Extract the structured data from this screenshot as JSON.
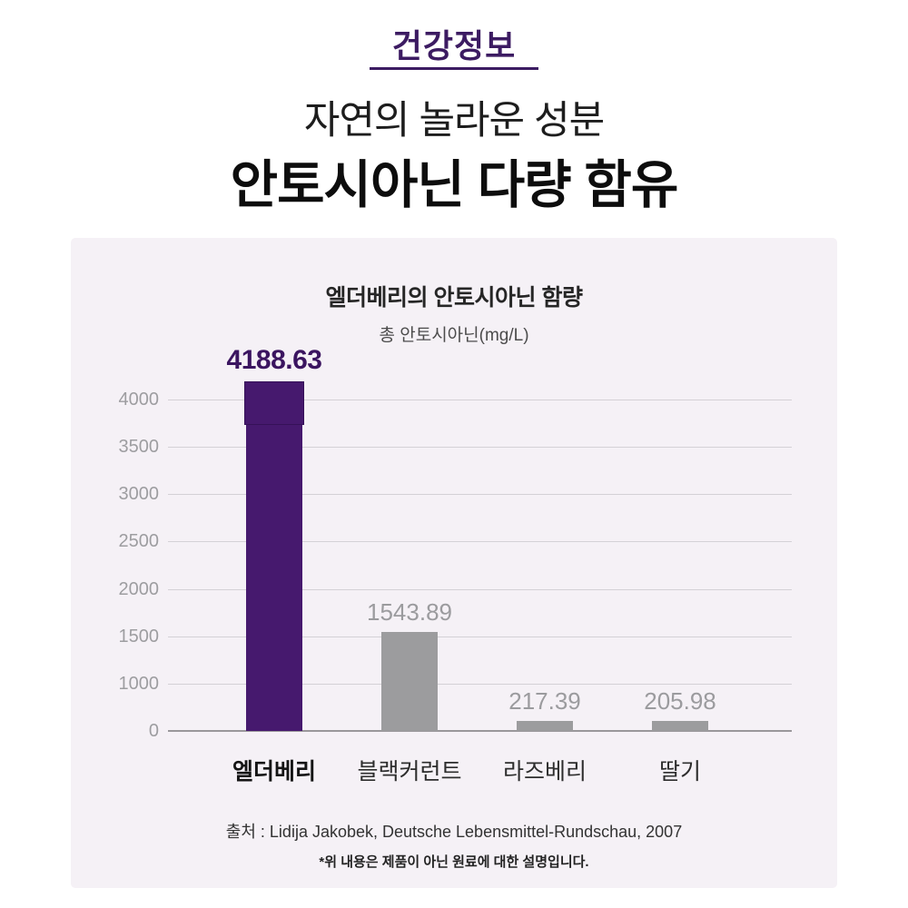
{
  "header": {
    "badge": "건강정보",
    "title_line1": "자연의 놀라운 성분",
    "title_line2": "안토시아닌 다량 함유"
  },
  "chart_panel": {
    "title": "엘더베리의 안토시아닌 함량",
    "subtitle": "총 안토시아닌(mg/L)",
    "source": "출처 : Lidija Jakobek, Deutsche Lebensmittel-Rundschau, 2007",
    "footnote": "*위 내용은 제품이 아닌 원료에 대한 설명입니다."
  },
  "chart_data": {
    "type": "bar",
    "title": "엘더베리의 안토시아닌 함량",
    "ylabel": "총 안토시아닌(mg/L)",
    "categories": [
      "엘더베리",
      "블랙커런트",
      "라즈베리",
      "딸기"
    ],
    "values": [
      4188.63,
      1543.89,
      217.39,
      205.98
    ],
    "value_labels": [
      "4188.63",
      "1543.89",
      "217.39",
      "205.98"
    ],
    "highlight_index": 0,
    "yticks": [
      4000,
      3500,
      3000,
      2500,
      2000,
      1500,
      1000,
      0
    ],
    "grid": true,
    "legend": false,
    "colors": {
      "bar_highlight": "#46196e",
      "bar_default": "#9c9c9e",
      "value_label_highlight": "#3b1560",
      "value_label_default": "#9b9b9e",
      "panel_background": "#f5f1f6",
      "header_accent": "#3c1b62",
      "gridline": "#d4d1d6",
      "baseline": "#9a989b"
    }
  }
}
